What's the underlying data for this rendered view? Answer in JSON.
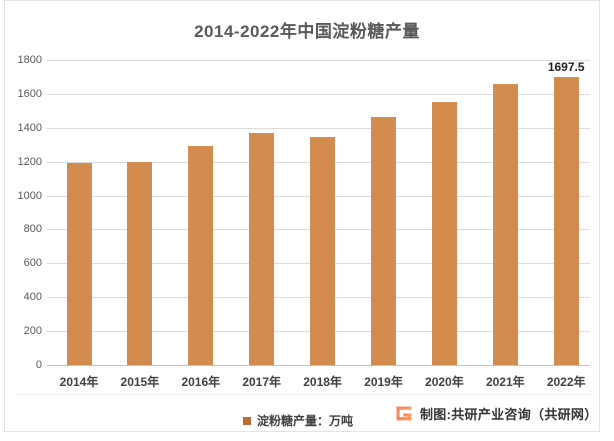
{
  "chart_data": {
    "type": "bar",
    "title": "2014-2022年中国淀粉糖产量",
    "categories": [
      "2014年",
      "2015年",
      "2016年",
      "2017年",
      "2018年",
      "2019年",
      "2020年",
      "2021年",
      "2022年"
    ],
    "series": [
      {
        "name": "淀粉糖产量：万吨",
        "values": [
          1195,
          1197,
          1295,
          1370,
          1345,
          1465,
          1550,
          1660,
          1697.5
        ]
      }
    ],
    "data_label": {
      "category": "2022年",
      "text": "1697.5"
    },
    "xlabel": "",
    "ylabel": "",
    "ylim": [
      0,
      1800
    ],
    "yticks": [
      0,
      200,
      400,
      600,
      800,
      1000,
      1200,
      1400,
      1600,
      1800
    ],
    "grid": true,
    "legend_position": "bottom-center",
    "bar_color": "#D28C50"
  },
  "legend": {
    "marker_icon": "legend-square-icon",
    "marker_color": "#BA6B33",
    "label": "淀粉糖产量：万吨"
  },
  "footer": {
    "logo_icon": "gongyan-g-logo-icon",
    "logo_gradient_start": "#F56E59",
    "logo_gradient_end": "#FCB064",
    "credit_text": "制图:共研产业咨询（共研网）"
  },
  "styles": {
    "title_color": "#595959",
    "ytick_color": "#595959",
    "xtick_color": "#404040",
    "gridline_color": "#DCDCDC",
    "axis_line_color": "#C2C2C2",
    "border_color": "#E4E4E4",
    "background": "#FFFFFF",
    "data_label_color": "#1F1F1F"
  }
}
